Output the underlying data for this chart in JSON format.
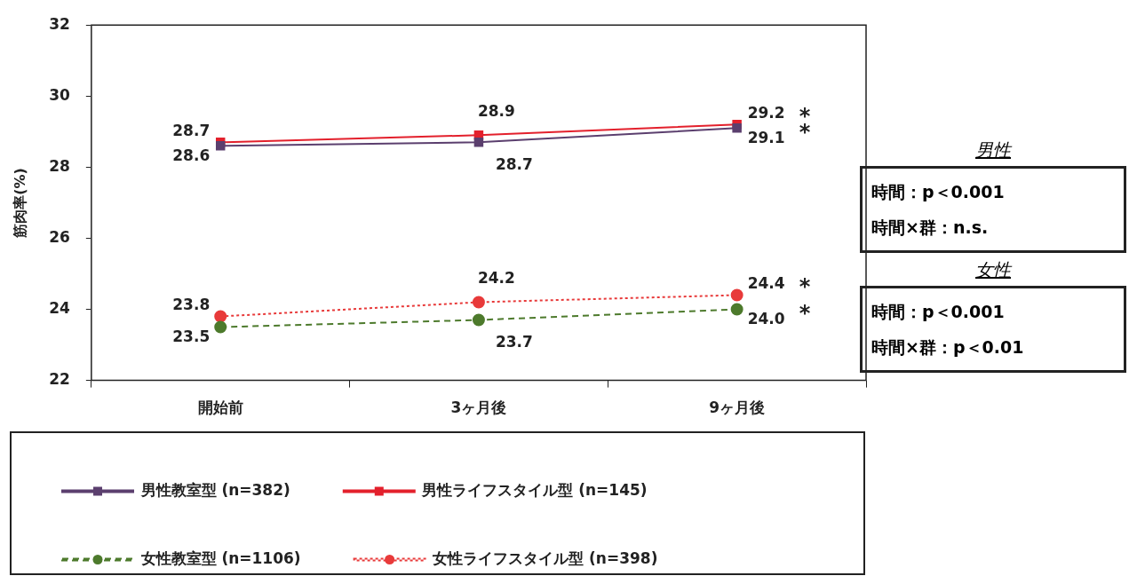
{
  "chart_data": {
    "type": "line",
    "ylabel": "筋肉率(%)",
    "categories": [
      "開始前",
      "3ヶ月後",
      "9ヶ月後"
    ],
    "series": [
      {
        "name": "男性教室型 (n=382)",
        "color": "#5b3f6e",
        "values": [
          28.6,
          28.7,
          29.1
        ],
        "value_labels": [
          "28.6",
          "28.7",
          "29.1"
        ],
        "marker": "square",
        "line_style": "solid"
      },
      {
        "name": "男性ライフスタイル型 (n=145)",
        "color": "#e3202c",
        "values": [
          28.7,
          28.9,
          29.2
        ],
        "value_labels": [
          "28.7",
          "28.9",
          "29.2"
        ],
        "marker": "square",
        "line_style": "solid"
      },
      {
        "name": "女性教室型 (n=1106)",
        "color": "#4d7a2c",
        "values": [
          23.5,
          23.7,
          24.0
        ],
        "value_labels": [
          "23.5",
          "23.7",
          "24.0"
        ],
        "marker": "circle",
        "line_style": "dashed"
      },
      {
        "name": "女性ライフスタイル型 (n=398)",
        "color": "#e83a3a",
        "values": [
          23.8,
          24.2,
          24.4
        ],
        "value_labels": [
          "23.8",
          "24.2",
          "24.4"
        ],
        "marker": "circle",
        "line_style": "dotted"
      }
    ],
    "ylim": [
      22,
      32
    ],
    "yticks": [
      22,
      24,
      26,
      28,
      30,
      32
    ],
    "grid": false,
    "legend": "bottom left",
    "annotations": [
      {
        "text": "*",
        "x": "9ヶ月後",
        "y": 29.2
      },
      {
        "text": "*",
        "x": "9ヶ月後",
        "y": 29.1
      },
      {
        "text": "*",
        "x": "9ヶ月後",
        "y": 24.4
      },
      {
        "text": "*",
        "x": "9ヶ月後",
        "y": 24.0
      },
      "男性",
      "時間：p＜0.001",
      "時間×群：n.s.",
      "女性",
      "時間：p＜0.001",
      "時間×群：p＜0.01"
    ]
  }
}
